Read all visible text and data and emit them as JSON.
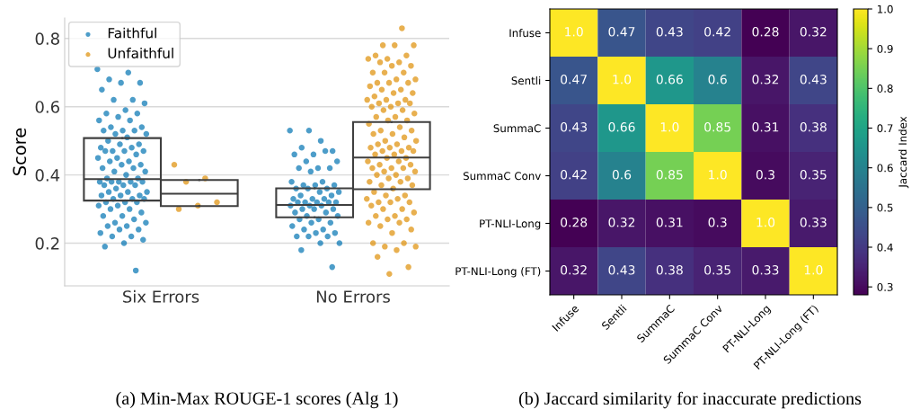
{
  "chart_data": [
    {
      "type": "box",
      "title": "(a) Min-Max ROUGE-1 scores (Alg 1)",
      "ylabel": "Score",
      "categories": [
        "Six Errors",
        "No Errors"
      ],
      "ylim": [
        0.075,
        0.86
      ],
      "yticks": [
        0.2,
        0.4,
        0.6,
        0.8
      ],
      "grid": "y",
      "legend": "top left",
      "series": [
        {
          "type": "box",
          "color": "#3f3f3f",
          "boxes": [
            {
              "q1": 0.325,
              "median": 0.388,
              "q3": 0.508
            },
            {
              "q1": 0.276,
              "median": 0.312,
              "q3": 0.361
            }
          ]
        },
        {
          "type": "box",
          "color": "#3f3f3f",
          "boxes": [
            {
              "q1": 0.309,
              "median": 0.345,
              "q3": 0.385
            },
            {
              "q1": 0.358,
              "median": 0.451,
              "q3": 0.555
            }
          ]
        },
        {
          "type": "scatter",
          "name": "Faithful",
          "color": "#0173b2",
          "marker": "circle",
          "x": [
            "Six Errors",
            "Six Errors",
            "Six Errors",
            "Six Errors",
            "Six Errors",
            "Six Errors",
            "Six Errors",
            "Six Errors",
            "Six Errors",
            "Six Errors",
            "Six Errors",
            "Six Errors",
            "Six Errors",
            "Six Errors",
            "Six Errors",
            "Six Errors",
            "Six Errors",
            "Six Errors",
            "Six Errors",
            "Six Errors",
            "Six Errors",
            "Six Errors",
            "Six Errors",
            "Six Errors",
            "Six Errors",
            "Six Errors",
            "Six Errors",
            "Six Errors",
            "Six Errors",
            "Six Errors",
            "Six Errors",
            "Six Errors",
            "Six Errors",
            "Six Errors",
            "Six Errors",
            "Six Errors",
            "Six Errors",
            "Six Errors",
            "Six Errors",
            "Six Errors",
            "Six Errors",
            "Six Errors",
            "Six Errors",
            "Six Errors",
            "Six Errors",
            "Six Errors",
            "Six Errors",
            "Six Errors",
            "Six Errors",
            "Six Errors",
            "Six Errors",
            "Six Errors",
            "Six Errors",
            "Six Errors",
            "Six Errors",
            "Six Errors",
            "Six Errors",
            "Six Errors",
            "Six Errors",
            "Six Errors",
            "Six Errors",
            "Six Errors",
            "Six Errors",
            "Six Errors",
            "Six Errors",
            "Six Errors",
            "Six Errors",
            "Six Errors",
            "Six Errors",
            "Six Errors",
            "Six Errors",
            "Six Errors",
            "Six Errors",
            "Six Errors",
            "Six Errors",
            "Six Errors",
            "Six Errors",
            "Six Errors",
            "Six Errors",
            "Six Errors",
            "Six Errors",
            "Six Errors",
            "Six Errors",
            "Six Errors",
            "Six Errors",
            "Six Errors",
            "Six Errors",
            "Six Errors",
            "No Errors",
            "No Errors",
            "No Errors",
            "No Errors",
            "No Errors",
            "No Errors",
            "No Errors",
            "No Errors",
            "No Errors",
            "No Errors",
            "No Errors",
            "No Errors",
            "No Errors",
            "No Errors",
            "No Errors",
            "No Errors",
            "No Errors",
            "No Errors",
            "No Errors",
            "No Errors",
            "No Errors",
            "No Errors",
            "No Errors",
            "No Errors",
            "No Errors",
            "No Errors",
            "No Errors",
            "No Errors",
            "No Errors",
            "No Errors",
            "No Errors",
            "No Errors",
            "No Errors",
            "No Errors",
            "No Errors",
            "No Errors",
            "No Errors",
            "No Errors",
            "No Errors",
            "No Errors",
            "No Errors",
            "No Errors",
            "No Errors",
            "No Errors",
            "No Errors",
            "No Errors",
            "No Errors",
            "No Errors",
            "No Errors",
            "No Errors",
            "No Errors",
            "No Errors",
            "No Errors",
            "No Errors",
            "No Errors",
            "No Errors",
            "No Errors",
            "No Errors",
            "No Errors",
            "No Errors"
          ],
          "values": [
            0.71,
            0.7,
            0.68,
            0.67,
            0.67,
            0.65,
            0.62,
            0.62,
            0.61,
            0.59,
            0.58,
            0.58,
            0.57,
            0.56,
            0.56,
            0.54,
            0.54,
            0.53,
            0.53,
            0.53,
            0.52,
            0.52,
            0.51,
            0.5,
            0.49,
            0.49,
            0.48,
            0.48,
            0.47,
            0.47,
            0.47,
            0.47,
            0.46,
            0.45,
            0.45,
            0.44,
            0.44,
            0.43,
            0.43,
            0.42,
            0.42,
            0.41,
            0.41,
            0.4,
            0.39,
            0.39,
            0.38,
            0.38,
            0.38,
            0.38,
            0.38,
            0.37,
            0.37,
            0.37,
            0.36,
            0.35,
            0.35,
            0.35,
            0.34,
            0.34,
            0.34,
            0.33,
            0.33,
            0.33,
            0.32,
            0.32,
            0.32,
            0.31,
            0.31,
            0.3,
            0.3,
            0.29,
            0.28,
            0.28,
            0.27,
            0.26,
            0.26,
            0.25,
            0.25,
            0.24,
            0.24,
            0.23,
            0.22,
            0.22,
            0.21,
            0.2,
            0.19,
            0.12,
            0.53,
            0.53,
            0.5,
            0.48,
            0.47,
            0.46,
            0.46,
            0.47,
            0.44,
            0.44,
            0.42,
            0.42,
            0.42,
            0.41,
            0.38,
            0.38,
            0.37,
            0.37,
            0.37,
            0.36,
            0.36,
            0.36,
            0.35,
            0.35,
            0.34,
            0.34,
            0.33,
            0.33,
            0.33,
            0.32,
            0.32,
            0.32,
            0.32,
            0.32,
            0.31,
            0.31,
            0.31,
            0.3,
            0.3,
            0.3,
            0.29,
            0.29,
            0.28,
            0.28,
            0.27,
            0.27,
            0.26,
            0.26,
            0.25,
            0.24,
            0.24,
            0.23,
            0.23,
            0.22,
            0.22,
            0.22,
            0.2,
            0.2,
            0.18,
            0.13
          ]
        },
        {
          "type": "scatter",
          "name": "Unfaithful",
          "color": "#de8f05",
          "marker": "circle",
          "x": [
            "Six Errors",
            "Six Errors",
            "Six Errors",
            "Six Errors",
            "Six Errors",
            "Six Errors",
            "No Errors",
            "No Errors",
            "No Errors",
            "No Errors",
            "No Errors",
            "No Errors",
            "No Errors",
            "No Errors",
            "No Errors",
            "No Errors",
            "No Errors",
            "No Errors",
            "No Errors",
            "No Errors",
            "No Errors",
            "No Errors",
            "No Errors",
            "No Errors",
            "No Errors",
            "No Errors",
            "No Errors",
            "No Errors",
            "No Errors",
            "No Errors",
            "No Errors",
            "No Errors",
            "No Errors",
            "No Errors",
            "No Errors",
            "No Errors",
            "No Errors",
            "No Errors",
            "No Errors",
            "No Errors",
            "No Errors",
            "No Errors",
            "No Errors",
            "No Errors",
            "No Errors",
            "No Errors",
            "No Errors",
            "No Errors",
            "No Errors",
            "No Errors",
            "No Errors",
            "No Errors",
            "No Errors",
            "No Errors",
            "No Errors",
            "No Errors",
            "No Errors",
            "No Errors",
            "No Errors",
            "No Errors",
            "No Errors",
            "No Errors",
            "No Errors",
            "No Errors",
            "No Errors",
            "No Errors",
            "No Errors",
            "No Errors",
            "No Errors",
            "No Errors",
            "No Errors",
            "No Errors",
            "No Errors",
            "No Errors",
            "No Errors",
            "No Errors",
            "No Errors",
            "No Errors",
            "No Errors",
            "No Errors",
            "No Errors",
            "No Errors",
            "No Errors",
            "No Errors",
            "No Errors",
            "No Errors",
            "No Errors",
            "No Errors",
            "No Errors",
            "No Errors",
            "No Errors",
            "No Errors",
            "No Errors",
            "No Errors",
            "No Errors",
            "No Errors",
            "No Errors",
            "No Errors",
            "No Errors",
            "No Errors",
            "No Errors",
            "No Errors",
            "No Errors",
            "No Errors",
            "No Errors",
            "No Errors",
            "No Errors",
            "No Errors",
            "No Errors",
            "No Errors",
            "No Errors",
            "No Errors",
            "No Errors",
            "No Errors",
            "No Errors"
          ],
          "values": [
            0.43,
            0.39,
            0.38,
            0.32,
            0.31,
            0.3,
            0.83,
            0.78,
            0.78,
            0.78,
            0.75,
            0.75,
            0.74,
            0.74,
            0.73,
            0.73,
            0.72,
            0.72,
            0.7,
            0.7,
            0.7,
            0.68,
            0.68,
            0.67,
            0.67,
            0.67,
            0.66,
            0.65,
            0.65,
            0.64,
            0.64,
            0.63,
            0.62,
            0.62,
            0.62,
            0.61,
            0.61,
            0.61,
            0.6,
            0.6,
            0.59,
            0.59,
            0.58,
            0.57,
            0.57,
            0.56,
            0.56,
            0.55,
            0.54,
            0.53,
            0.53,
            0.52,
            0.52,
            0.51,
            0.5,
            0.5,
            0.49,
            0.49,
            0.48,
            0.48,
            0.48,
            0.47,
            0.47,
            0.47,
            0.46,
            0.46,
            0.45,
            0.45,
            0.44,
            0.44,
            0.43,
            0.43,
            0.42,
            0.42,
            0.42,
            0.41,
            0.41,
            0.4,
            0.4,
            0.39,
            0.39,
            0.38,
            0.38,
            0.37,
            0.37,
            0.36,
            0.35,
            0.34,
            0.34,
            0.33,
            0.33,
            0.32,
            0.32,
            0.32,
            0.31,
            0.3,
            0.3,
            0.29,
            0.28,
            0.28,
            0.27,
            0.27,
            0.26,
            0.26,
            0.25,
            0.24,
            0.23,
            0.2,
            0.2,
            0.19,
            0.19,
            0.18,
            0.16,
            0.13,
            0.11
          ]
        }
      ]
    },
    {
      "type": "heatmap",
      "title": "(b) Jaccard similarity for inaccurate predictions",
      "clabel": "Jaccard Index",
      "categories": [
        "Infuse",
        "Sentli",
        "SummaC",
        "SummaC Conv",
        "PT-NLI-Long",
        "PT-NLI-Long (FT)"
      ],
      "y_categories": [
        "Infuse",
        "Sentli",
        "SummaC",
        "SummaC Conv",
        "PT-NLI-Long",
        "PT-NLI-Long (FT)"
      ],
      "cells": [
        [
          1.0,
          0.47,
          0.43,
          0.42,
          0.28,
          0.32
        ],
        [
          0.47,
          1.0,
          0.66,
          0.6,
          0.32,
          0.43
        ],
        [
          0.43,
          0.66,
          1.0,
          0.85,
          0.31,
          0.38
        ],
        [
          0.42,
          0.6,
          0.85,
          1.0,
          0.3,
          0.35
        ],
        [
          0.28,
          0.32,
          0.31,
          0.3,
          1.0,
          0.33
        ],
        [
          0.32,
          0.43,
          0.38,
          0.35,
          0.33,
          1.0
        ]
      ],
      "cell_labels": [
        [
          "1.0",
          "0.47",
          "0.43",
          "0.42",
          "0.28",
          "0.32"
        ],
        [
          "0.47",
          "1.0",
          "0.66",
          "0.6",
          "0.32",
          "0.43"
        ],
        [
          "0.43",
          "0.66",
          "1.0",
          "0.85",
          "0.31",
          "0.38"
        ],
        [
          "0.42",
          "0.6",
          "0.85",
          "1.0",
          "0.3",
          "0.35"
        ],
        [
          "0.28",
          "0.32",
          "0.31",
          "0.3",
          "1.0",
          "0.33"
        ],
        [
          "0.32",
          "0.43",
          "0.38",
          "0.35",
          "0.33",
          "1.0"
        ]
      ],
      "data_labels": true,
      "clim": [
        0.28,
        1.0
      ],
      "cticks": [
        0.3,
        0.4,
        0.5,
        0.6,
        0.7,
        0.8,
        0.9,
        {
          "value": 1.0,
          "label": "1.0"
        }
      ]
    }
  ]
}
